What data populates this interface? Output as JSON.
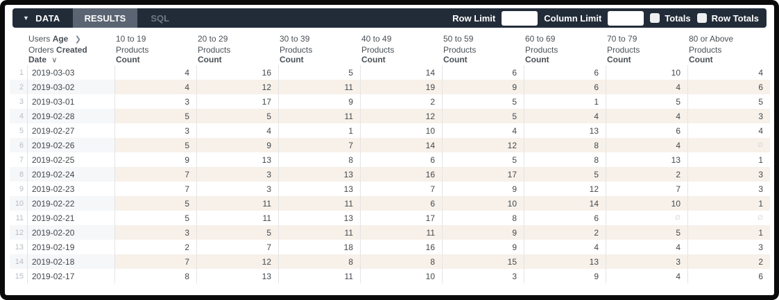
{
  "toolbar": {
    "data_tab": "DATA",
    "results_tab": "RESULTS",
    "sql_tab": "SQL",
    "row_limit_label": "Row Limit",
    "row_limit_value": "",
    "column_limit_label": "Column Limit",
    "column_limit_value": "",
    "totals_label": "Totals",
    "totals_checked": false,
    "row_totals_label": "Row Totals",
    "row_totals_checked": false
  },
  "table": {
    "pivot_header": {
      "view": "Users",
      "field": "Age"
    },
    "dimension_header": {
      "view": "Orders",
      "field_bold_line1": "Created",
      "field_bold_line2": "Date"
    },
    "measure_header": {
      "view": "Products",
      "field": "Count"
    },
    "age_buckets": [
      "10 to 19",
      "20 to 29",
      "30 to 39",
      "40 to 49",
      "50 to 59",
      "60 to 69",
      "70 to 79",
      "80 or Above"
    ],
    "null_symbol": "∅",
    "rows": [
      {
        "n": 1,
        "date": "2019-03-03",
        "values": [
          4,
          16,
          5,
          14,
          6,
          6,
          10,
          4
        ]
      },
      {
        "n": 2,
        "date": "2019-03-02",
        "values": [
          4,
          12,
          11,
          19,
          9,
          6,
          4,
          6
        ]
      },
      {
        "n": 3,
        "date": "2019-03-01",
        "values": [
          3,
          17,
          9,
          2,
          5,
          1,
          5,
          5
        ]
      },
      {
        "n": 4,
        "date": "2019-02-28",
        "values": [
          5,
          5,
          11,
          12,
          5,
          4,
          4,
          3
        ]
      },
      {
        "n": 5,
        "date": "2019-02-27",
        "values": [
          3,
          4,
          1,
          10,
          4,
          13,
          6,
          4
        ]
      },
      {
        "n": 6,
        "date": "2019-02-26",
        "values": [
          5,
          9,
          7,
          14,
          12,
          8,
          4,
          null
        ]
      },
      {
        "n": 7,
        "date": "2019-02-25",
        "values": [
          9,
          13,
          8,
          6,
          5,
          8,
          13,
          1
        ]
      },
      {
        "n": 8,
        "date": "2019-02-24",
        "values": [
          7,
          3,
          13,
          16,
          17,
          5,
          2,
          3
        ]
      },
      {
        "n": 9,
        "date": "2019-02-23",
        "values": [
          7,
          3,
          13,
          7,
          9,
          12,
          7,
          3
        ]
      },
      {
        "n": 10,
        "date": "2019-02-22",
        "values": [
          5,
          11,
          11,
          6,
          10,
          14,
          10,
          1
        ]
      },
      {
        "n": 11,
        "date": "2019-02-21",
        "values": [
          5,
          11,
          13,
          17,
          8,
          6,
          null,
          null
        ]
      },
      {
        "n": 12,
        "date": "2019-02-20",
        "values": [
          3,
          5,
          11,
          11,
          9,
          2,
          5,
          1
        ]
      },
      {
        "n": 13,
        "date": "2019-02-19",
        "values": [
          2,
          7,
          18,
          16,
          9,
          4,
          4,
          3
        ]
      },
      {
        "n": 14,
        "date": "2019-02-18",
        "values": [
          7,
          12,
          8,
          8,
          15,
          13,
          3,
          2
        ]
      },
      {
        "n": 15,
        "date": "2019-02-17",
        "values": [
          8,
          13,
          11,
          10,
          3,
          9,
          4,
          6
        ]
      }
    ]
  },
  "colors": {
    "toolbar_bg": "#222c39",
    "results_tab_bg": "#5a6472",
    "pivot_header_bg": "#ccd9e6",
    "dimension_header_bg": "#dfe8f1",
    "measure_header_bg": "#f8e2d0",
    "even_row_measure_bg": "#f7f1ea",
    "even_row_dim_bg": "#f5f7f9"
  }
}
